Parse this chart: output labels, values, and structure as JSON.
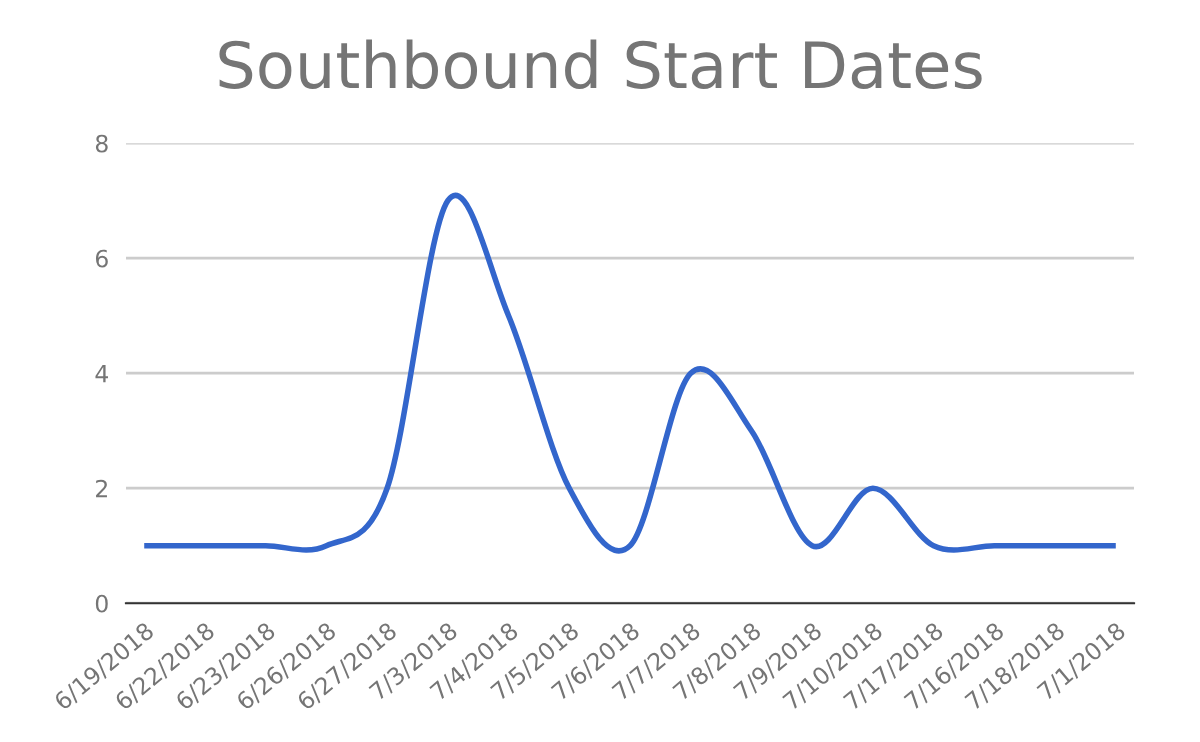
{
  "chart_data": {
    "type": "line",
    "title": "Southbound Start Dates",
    "categories": [
      "6/19/2018",
      "6/22/2018",
      "6/23/2018",
      "6/26/2018",
      "6/27/2018",
      "7/3/2018",
      "7/4/2018",
      "7/5/2018",
      "7/6/2018",
      "7/7/2018",
      "7/8/2018",
      "7/9/2018",
      "7/10/2018",
      "7/17/2018",
      "7/16/2018",
      "7/18/2018",
      "7/1/2018"
    ],
    "series": [
      {
        "color": "#3366cc",
        "values": [
          1,
          1,
          1,
          1,
          2,
          7,
          5,
          2,
          1,
          4,
          3,
          1,
          2,
          1,
          1,
          1,
          1
        ]
      }
    ],
    "ylim": [
      0,
      8
    ],
    "yticks": [
      0,
      2,
      4,
      6,
      8
    ],
    "grid": "y",
    "marker": "none",
    "line_style": "solid"
  }
}
